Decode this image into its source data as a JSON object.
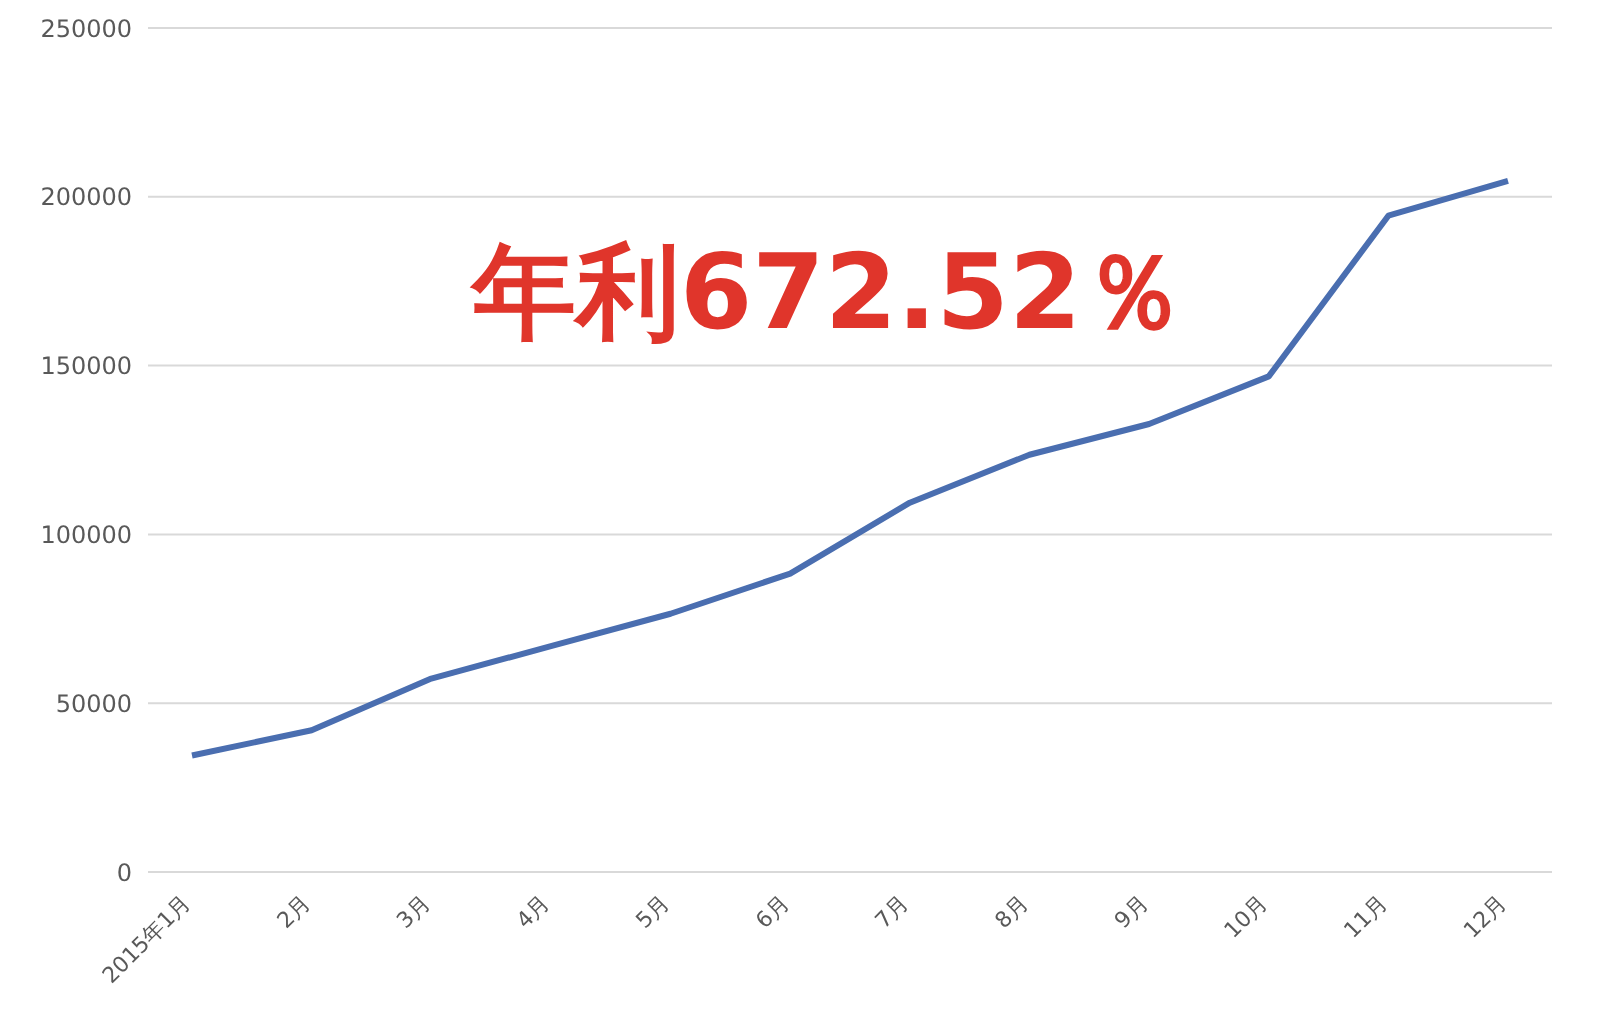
{
  "chart_data": {
    "type": "line",
    "categories": [
      "2015年1月",
      "2月",
      "3月",
      "4月",
      "5月",
      "6月",
      "7月",
      "8月",
      "9月",
      "10月",
      "11月",
      "12月"
    ],
    "series": [
      {
        "color": "#4a6eb0",
        "values": [
          34500,
          42000,
          57300,
          66900,
          76500,
          88400,
          109400,
          123600,
          132700,
          146800,
          194400,
          204700
        ]
      }
    ],
    "ylim": [
      0,
      250000
    ],
    "yticks": [
      0,
      50000,
      100000,
      150000,
      200000,
      250000
    ],
    "grid": "y",
    "legend": false,
    "marker": "none",
    "line_style": "solid",
    "annotations": [
      "年利672.52％"
    ]
  }
}
